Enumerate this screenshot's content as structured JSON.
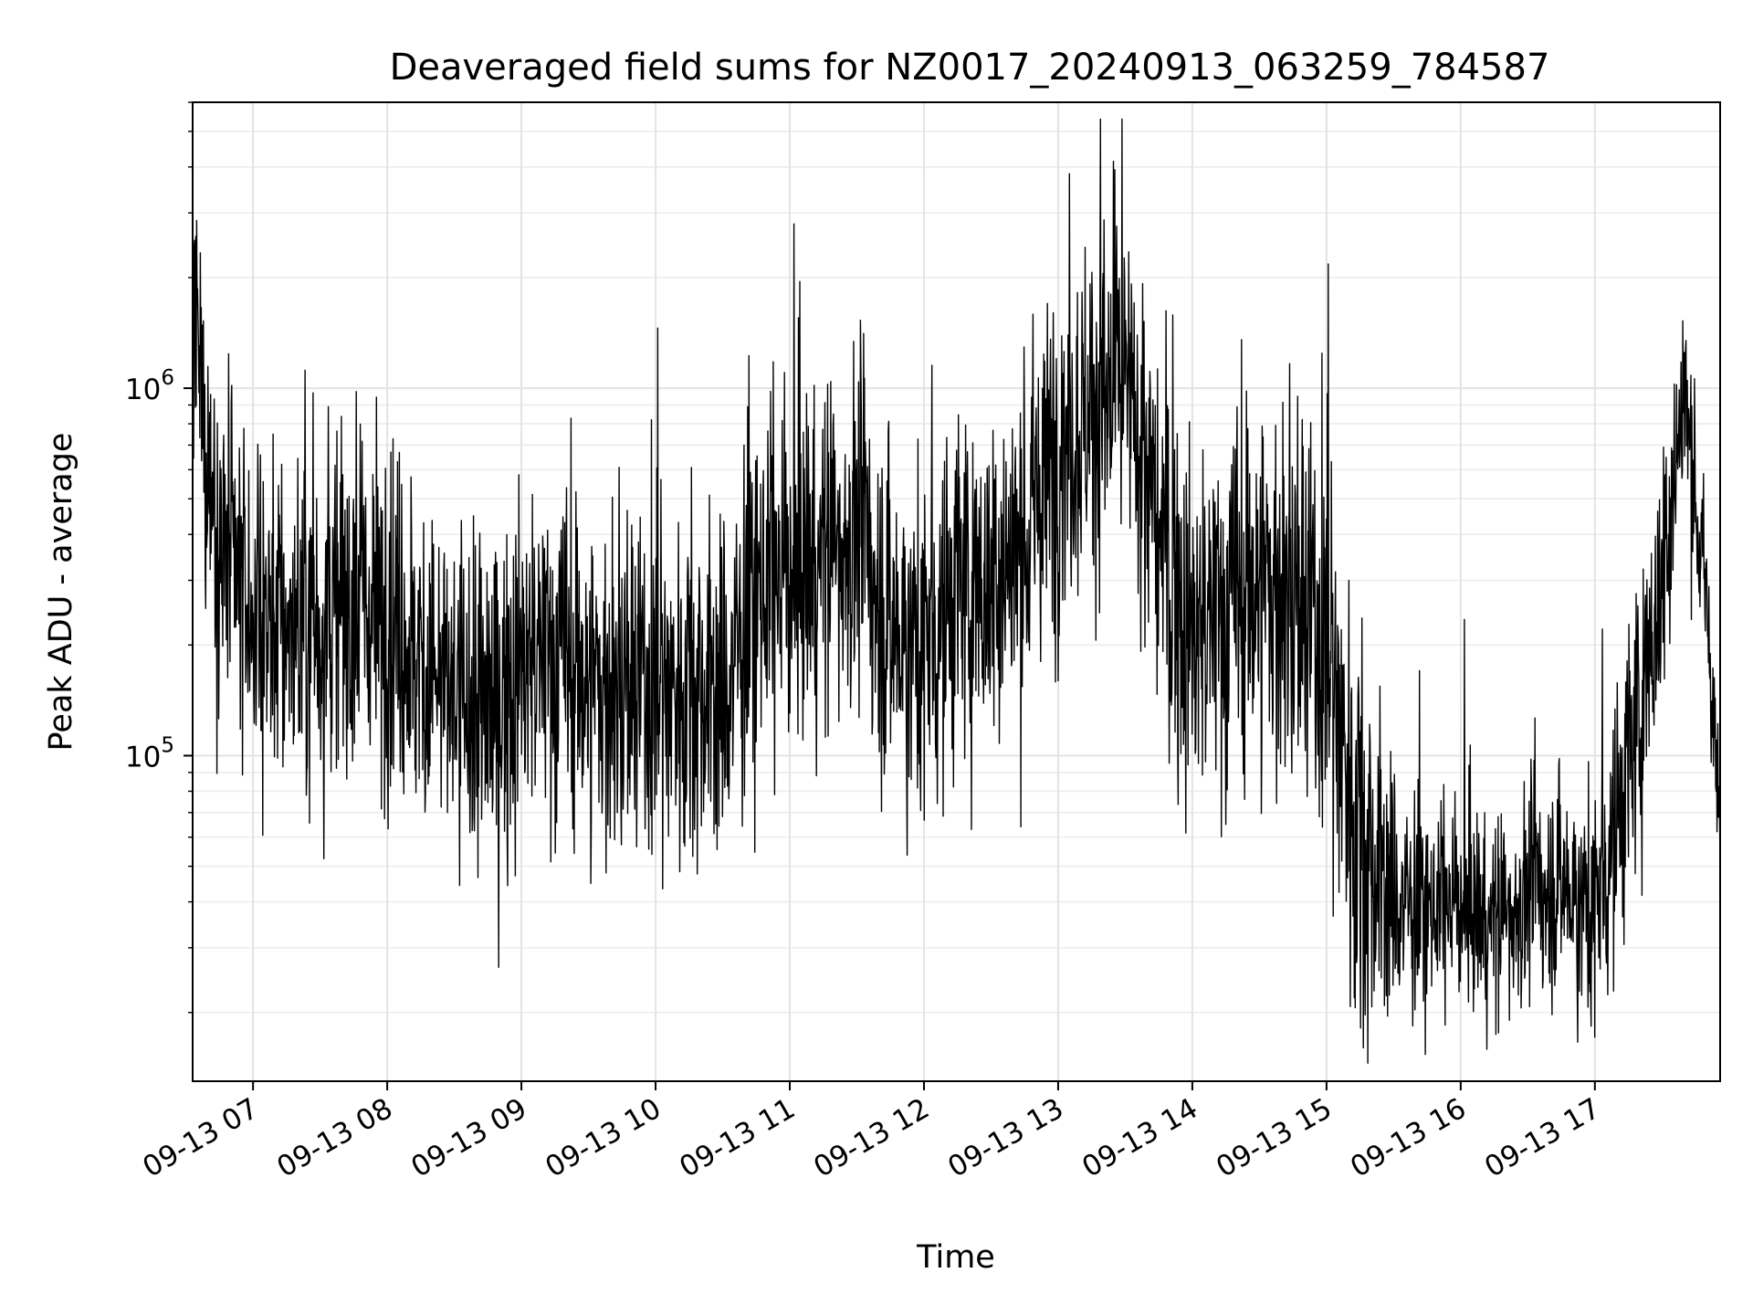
{
  "chart_data": {
    "type": "line",
    "title": "Deaveraged field sums for NZ0017_20240913_063259_784587",
    "xlabel": "Time",
    "ylabel": "Peak ADU - average",
    "yscale": "log",
    "ylim": [
      13000,
      6000000
    ],
    "xlim": [
      "2024-09-13 06:33",
      "2024-09-13 17:56"
    ],
    "grid": true,
    "line_color": "#000000",
    "x_ticks": [
      {
        "value": "2024-09-13 07:00",
        "label": "09-13 07"
      },
      {
        "value": "2024-09-13 08:00",
        "label": "09-13 08"
      },
      {
        "value": "2024-09-13 09:00",
        "label": "09-13 09"
      },
      {
        "value": "2024-09-13 10:00",
        "label": "09-13 10"
      },
      {
        "value": "2024-09-13 11:00",
        "label": "09-13 11"
      },
      {
        "value": "2024-09-13 12:00",
        "label": "09-13 12"
      },
      {
        "value": "2024-09-13 13:00",
        "label": "09-13 13"
      },
      {
        "value": "2024-09-13 14:00",
        "label": "09-13 14"
      },
      {
        "value": "2024-09-13 15:00",
        "label": "09-13 15"
      },
      {
        "value": "2024-09-13 16:00",
        "label": "09-13 16"
      },
      {
        "value": "2024-09-13 17:00",
        "label": "09-13 17"
      }
    ],
    "y_ticks": [
      {
        "value": 100000,
        "base": "10",
        "exp": "5"
      },
      {
        "value": 1000000,
        "base": "10",
        "exp": "6"
      }
    ],
    "series": [
      {
        "color": "#000000",
        "x": [
          "2024-09-13 06:33",
          "2024-09-13 06:40",
          "2024-09-13 06:50",
          "2024-09-13 07:00",
          "2024-09-13 07:15",
          "2024-09-13 07:30",
          "2024-09-13 07:45",
          "2024-09-13 08:00",
          "2024-09-13 08:15",
          "2024-09-13 08:30",
          "2024-09-13 08:45",
          "2024-09-13 09:00",
          "2024-09-13 09:15",
          "2024-09-13 09:30",
          "2024-09-13 09:45",
          "2024-09-13 10:00",
          "2024-09-13 10:15",
          "2024-09-13 10:30",
          "2024-09-13 10:45",
          "2024-09-13 11:00",
          "2024-09-13 11:15",
          "2024-09-13 11:30",
          "2024-09-13 11:45",
          "2024-09-13 12:00",
          "2024-09-13 12:15",
          "2024-09-13 12:30",
          "2024-09-13 12:45",
          "2024-09-13 13:00",
          "2024-09-13 13:15",
          "2024-09-13 13:30",
          "2024-09-13 13:45",
          "2024-09-13 14:00",
          "2024-09-13 14:15",
          "2024-09-13 14:30",
          "2024-09-13 14:45",
          "2024-09-13 15:00",
          "2024-09-13 15:15",
          "2024-09-13 15:30",
          "2024-09-13 15:45",
          "2024-09-13 16:00",
          "2024-09-13 16:15",
          "2024-09-13 16:30",
          "2024-09-13 16:45",
          "2024-09-13 17:00",
          "2024-09-13 17:15",
          "2024-09-13 17:30",
          "2024-09-13 17:40",
          "2024-09-13 17:50",
          "2024-09-13 17:56"
        ],
        "y": [
          1500000,
          600000,
          300000,
          250000,
          220000,
          230000,
          260000,
          250000,
          180000,
          140000,
          130000,
          170000,
          190000,
          160000,
          140000,
          150000,
          160000,
          140000,
          280000,
          320000,
          350000,
          420000,
          220000,
          200000,
          280000,
          300000,
          380000,
          700000,
          900000,
          1000000,
          400000,
          200000,
          250000,
          300000,
          250000,
          200000,
          60000,
          40000,
          38000,
          40000,
          35000,
          42000,
          45000,
          38000,
          90000,
          300000,
          1000000,
          250000,
          60000
        ],
        "noise": [
          2.2,
          2.4,
          2.6,
          2.6,
          2.6,
          2.6,
          2.6,
          2.6,
          2.6,
          2.6,
          2.6,
          2.6,
          2.6,
          2.6,
          2.6,
          2.6,
          2.6,
          2.6,
          2.6,
          2.6,
          2.6,
          2.6,
          2.6,
          2.6,
          2.6,
          2.6,
          2.6,
          2.6,
          2.6,
          2.6,
          2.6,
          2.8,
          2.8,
          3.0,
          3.0,
          3.0,
          3.2,
          2.0,
          1.7,
          1.7,
          1.8,
          1.8,
          1.8,
          2.0,
          2.2,
          2.2,
          1.8,
          1.6,
          1.5
        ]
      }
    ]
  }
}
